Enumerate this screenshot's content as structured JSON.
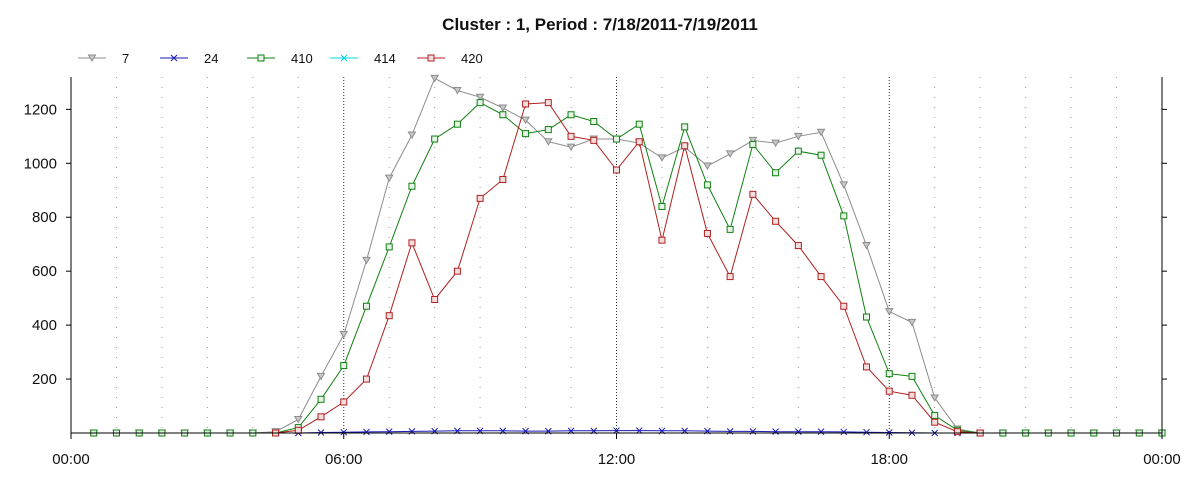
{
  "chart_data": {
    "type": "line",
    "title": "Cluster : 1, Period : 7/18/2011-7/19/2011",
    "xlabel": "",
    "ylabel": "",
    "x_tick_labels": [
      "00:00",
      "06:00",
      "12:00",
      "18:00",
      "00:00"
    ],
    "x_tick_hours": [
      0,
      6,
      12,
      18,
      24
    ],
    "xlim": [
      0,
      24
    ],
    "ylim": [
      0,
      1320
    ],
    "y_ticks": [
      200,
      400,
      600,
      800,
      1000,
      1200
    ],
    "grid": "vertical dotted",
    "legend_position": "top-left",
    "series": [
      {
        "name": "7",
        "color": "#8c8c8c",
        "marker": "triangle-down",
        "x": [
          0.5,
          1,
          1.5,
          2,
          2.5,
          3,
          3.5,
          4,
          4.5,
          5,
          5.5,
          6,
          6.5,
          7,
          7.5,
          8,
          8.5,
          9,
          9.5,
          10,
          10.5,
          11,
          11.5,
          12,
          12.5,
          13,
          13.5,
          14,
          14.5,
          15,
          15.5,
          16,
          16.5,
          17,
          17.5,
          18,
          18.5,
          19,
          19.5,
          20,
          20.5,
          21,
          21.5,
          22,
          22.5,
          23,
          23.5,
          24
        ],
        "values": [
          0,
          0,
          0,
          0,
          0,
          0,
          0,
          0,
          5,
          50,
          210,
          365,
          640,
          945,
          1105,
          1315,
          1270,
          1245,
          1205,
          1160,
          1080,
          1060,
          1090,
          1090,
          1075,
          1020,
          1060,
          990,
          1035,
          1085,
          1075,
          1100,
          1115,
          920,
          695,
          450,
          410,
          130,
          15,
          0,
          0,
          0,
          0,
          0,
          0,
          0,
          0,
          0
        ]
      },
      {
        "name": "24",
        "color": "#1a1ab3",
        "marker": "x",
        "x": [
          0.5,
          1,
          1.5,
          2,
          2.5,
          3,
          3.5,
          4,
          4.5,
          5,
          5.5,
          6,
          6.5,
          7,
          7.5,
          8,
          8.5,
          9,
          9.5,
          10,
          10.5,
          11,
          11.5,
          12,
          12.5,
          13,
          13.5,
          14,
          14.5,
          15,
          15.5,
          16,
          16.5,
          17,
          17.5,
          18,
          18.5,
          19,
          19.5,
          20,
          20.5,
          21,
          21.5,
          22,
          22.5,
          23,
          23.5,
          24
        ],
        "values": [
          0,
          0,
          0,
          0,
          0,
          0,
          0,
          0,
          0,
          0,
          2,
          3,
          4,
          5,
          6,
          7,
          8,
          8,
          8,
          7,
          7,
          8,
          8,
          9,
          9,
          8,
          8,
          7,
          6,
          6,
          5,
          5,
          5,
          4,
          3,
          2,
          1,
          0,
          0,
          0,
          0,
          0,
          0,
          0,
          0,
          0,
          0,
          0
        ]
      },
      {
        "name": "410",
        "color": "#108010",
        "marker": "square",
        "x": [
          0.5,
          1,
          1.5,
          2,
          2.5,
          3,
          3.5,
          4,
          4.5,
          5,
          5.5,
          6,
          6.5,
          7,
          7.5,
          8,
          8.5,
          9,
          9.5,
          10,
          10.5,
          11,
          11.5,
          12,
          12.5,
          13,
          13.5,
          14,
          14.5,
          15,
          15.5,
          16,
          16.5,
          17,
          17.5,
          18,
          18.5,
          19,
          19.5,
          20,
          20.5,
          21,
          21.5,
          22,
          22.5,
          23,
          23.5,
          24
        ],
        "values": [
          0,
          0,
          0,
          0,
          0,
          0,
          0,
          0,
          0,
          20,
          125,
          250,
          470,
          690,
          915,
          1090,
          1145,
          1225,
          1180,
          1110,
          1125,
          1180,
          1155,
          1090,
          1145,
          840,
          1135,
          920,
          755,
          1070,
          965,
          1045,
          1030,
          805,
          430,
          220,
          210,
          65,
          10,
          0,
          0,
          0,
          0,
          0,
          0,
          0,
          0,
          0
        ]
      },
      {
        "name": "414",
        "color": "#00d8d8",
        "marker": "x",
        "x": [],
        "values": []
      },
      {
        "name": "420",
        "color": "#b02020",
        "marker": "square",
        "x": [
          4.5,
          5,
          5.5,
          6,
          6.5,
          7,
          7.5,
          8,
          8.5,
          9,
          9.5,
          10,
          10.5,
          11,
          11.5,
          12,
          12.5,
          13,
          13.5,
          14,
          14.5,
          15,
          15.5,
          16,
          16.5,
          17,
          17.5,
          18,
          18.5,
          19,
          19.5,
          20
        ],
        "values": [
          0,
          10,
          60,
          115,
          200,
          435,
          705,
          495,
          600,
          870,
          940,
          1220,
          1225,
          1100,
          1085,
          975,
          1080,
          715,
          1065,
          740,
          580,
          885,
          785,
          695,
          580,
          470,
          245,
          155,
          140,
          40,
          5,
          0
        ]
      }
    ]
  }
}
